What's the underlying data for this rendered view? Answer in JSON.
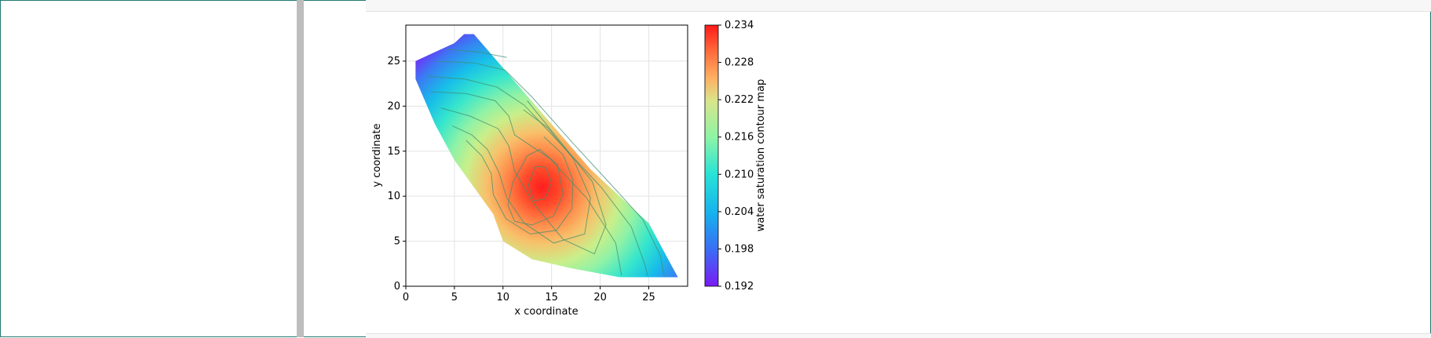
{
  "chart_data": {
    "type": "heatmap",
    "title": "",
    "xlabel": "x coordinate",
    "ylabel": "y coordinate",
    "xlim": [
      0,
      29
    ],
    "ylim": [
      0,
      29
    ],
    "xticks": [
      "0",
      "5",
      "10",
      "15",
      "20",
      "25"
    ],
    "yticks": [
      "0",
      "5",
      "10",
      "15",
      "20",
      "25"
    ],
    "grid": true,
    "colorbar": {
      "label": "water saturation contour map",
      "range": [
        0.192,
        0.234
      ],
      "ticks": [
        "0.192",
        "0.198",
        "0.204",
        "0.210",
        "0.216",
        "0.222",
        "0.228",
        "0.234"
      ],
      "colormap": "rainbow"
    },
    "region": [
      [
        6,
        28
      ],
      [
        7,
        28
      ],
      [
        11,
        23
      ],
      [
        15,
        18
      ],
      [
        19,
        13
      ],
      [
        22,
        10
      ],
      [
        25,
        7
      ],
      [
        27,
        3
      ],
      [
        28,
        1
      ],
      [
        22,
        1
      ],
      [
        17,
        2
      ],
      [
        13,
        3
      ],
      [
        10,
        5
      ],
      [
        9,
        8
      ],
      [
        7,
        11
      ],
      [
        5,
        14
      ],
      [
        3,
        18
      ],
      [
        1,
        23
      ],
      [
        1,
        25
      ],
      [
        3,
        26
      ],
      [
        5,
        27
      ]
    ],
    "peak": {
      "x": 14,
      "y": 11,
      "value": 0.234
    },
    "contours": [
      {
        "value": 0.23,
        "points": [
          [
            13.3,
            13.3
          ],
          [
            12.6,
            11.2
          ],
          [
            13.2,
            9.5
          ],
          [
            14.3,
            9.7
          ],
          [
            15.0,
            11.5
          ],
          [
            14.4,
            13.2
          ]
        ]
      },
      {
        "value": 0.228,
        "points": [
          [
            12.5,
            14.5
          ],
          [
            11.0,
            11.5
          ],
          [
            10.5,
            9
          ],
          [
            11.2,
            7.2
          ],
          [
            13.0,
            6.8
          ],
          [
            15.2,
            7.8
          ],
          [
            16.2,
            10.2
          ],
          [
            15.6,
            13.5
          ],
          [
            13.8,
            15.2
          ]
        ]
      },
      {
        "value": 0.226,
        "points": [
          [
            6.2,
            16.2
          ],
          [
            7.8,
            14.5
          ],
          [
            8.8,
            12.5
          ],
          [
            9.0,
            10.2
          ],
          [
            10.3,
            7.5
          ],
          [
            12.8,
            5.8
          ],
          [
            15.5,
            6.2
          ],
          [
            17.1,
            8.6
          ],
          [
            17.2,
            11.8
          ],
          [
            16.2,
            14.6
          ],
          [
            14.2,
            16.6
          ]
        ]
      },
      {
        "value": 0.222,
        "points": [
          [
            4.8,
            17.8
          ],
          [
            6.8,
            16.8
          ],
          [
            8.4,
            15.2
          ],
          [
            9.6,
            12.6
          ],
          [
            10.4,
            9.8
          ],
          [
            12.2,
            7.0
          ],
          [
            15.2,
            4.8
          ],
          [
            18.4,
            5.8
          ],
          [
            19.0,
            9.8
          ],
          [
            17.2,
            14.2
          ],
          [
            14.6,
            17.6
          ],
          [
            12.1,
            19.6
          ]
        ]
      },
      {
        "value": 0.218,
        "points": [
          [
            3.6,
            19.8
          ],
          [
            6.6,
            18.9
          ],
          [
            9.5,
            17.5
          ],
          [
            10.6,
            15.6
          ],
          [
            11.2,
            12.8
          ],
          [
            13.2,
            9.1
          ],
          [
            16.2,
            5.2
          ],
          [
            19.4,
            3.6
          ],
          [
            20.6,
            6.8
          ],
          [
            19.2,
            11.6
          ],
          [
            15.8,
            16.2
          ],
          [
            12.5,
            20.6
          ]
        ]
      },
      {
        "value": 0.214,
        "points": [
          [
            2.6,
            21.6
          ],
          [
            6.2,
            21.4
          ],
          [
            9.2,
            20.6
          ],
          [
            10.6,
            18.9
          ],
          [
            11.2,
            16.8
          ],
          [
            14.8,
            14.2
          ],
          [
            18.6,
            9.8
          ],
          [
            21.6,
            4.8
          ],
          [
            22.2,
            1.2
          ]
        ]
      },
      {
        "value": 0.21,
        "points": [
          [
            2.2,
            23.3
          ],
          [
            6.1,
            23.0
          ],
          [
            9.4,
            22.1
          ],
          [
            12.2,
            20.1
          ],
          [
            16.1,
            15.6
          ],
          [
            20.1,
            11.0
          ],
          [
            23.2,
            6.6
          ],
          [
            24.6,
            2.4
          ],
          [
            24.9,
            1.1
          ]
        ]
      },
      {
        "value": 0.204,
        "points": [
          [
            3.0,
            25.0
          ],
          [
            7.0,
            24.8
          ],
          [
            10.2,
            24.0
          ],
          [
            13.0,
            21.0
          ],
          [
            17.1,
            16.0
          ],
          [
            21.2,
            11.2
          ],
          [
            24.4,
            7.4
          ],
          [
            26.2,
            3.4
          ],
          [
            26.6,
            1.1
          ]
        ]
      },
      {
        "value": 0.198,
        "points": [
          [
            4.2,
            26.3
          ],
          [
            7.6,
            26.0
          ],
          [
            10.4,
            25.4
          ]
        ]
      }
    ]
  }
}
